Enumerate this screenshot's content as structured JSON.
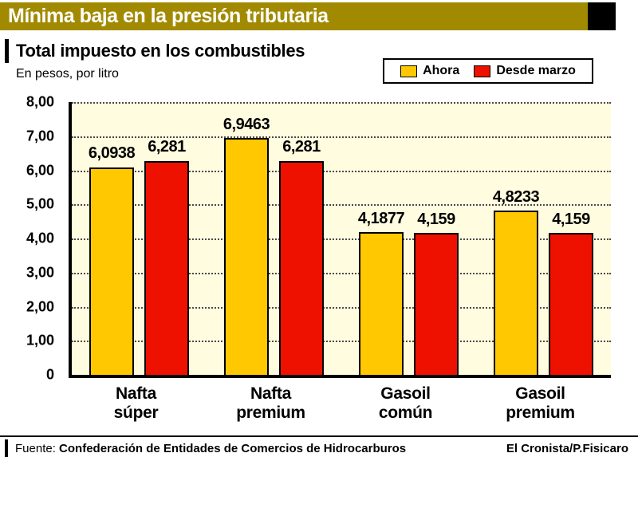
{
  "header": {
    "title": "Mínima baja en la presión tributaria"
  },
  "subtitle": "Total impuesto en los combustibles",
  "units_label": "En pesos, por litro",
  "colors": {
    "header_bg": "#A28A00",
    "ahora": "#FFC800",
    "desde_marzo": "#EE1100",
    "plot_bg": "#FFFCE0"
  },
  "legend": {
    "items": [
      {
        "label": "Ahora",
        "color": "#FFC800"
      },
      {
        "label": "Desde marzo",
        "color": "#EE1100"
      }
    ]
  },
  "chart_data": {
    "type": "bar",
    "title": "Total impuesto en los combustibles",
    "units": "En pesos, por litro",
    "categories": [
      "Nafta súper",
      "Nafta premium",
      "Gasoil común",
      "Gasoil premium"
    ],
    "series": [
      {
        "name": "Ahora",
        "color": "#FFC800",
        "values": [
          6.0938,
          6.9463,
          4.1877,
          4.8233
        ],
        "value_labels": [
          "6,0938",
          "6,9463",
          "4,1877",
          "4,8233"
        ]
      },
      {
        "name": "Desde marzo",
        "color": "#EE1100",
        "values": [
          6.281,
          6.281,
          4.159,
          4.159
        ],
        "value_labels": [
          "6,281",
          "6,281",
          "4,159",
          "4,159"
        ]
      }
    ],
    "ylim": [
      0,
      8
    ],
    "ytick_labels": [
      "8,00",
      "7,00",
      "6,00",
      "5,00",
      "4,00",
      "3,00",
      "2,00",
      "1,00",
      "0"
    ],
    "grid": "horizontal-dotted",
    "legend_position": "top-right"
  },
  "footer": {
    "source_label": "Fuente:",
    "source": "Confederación de Entidades de Comercios de Hidrocarburos",
    "credit": "El Cronista/P.Fisicaro"
  }
}
